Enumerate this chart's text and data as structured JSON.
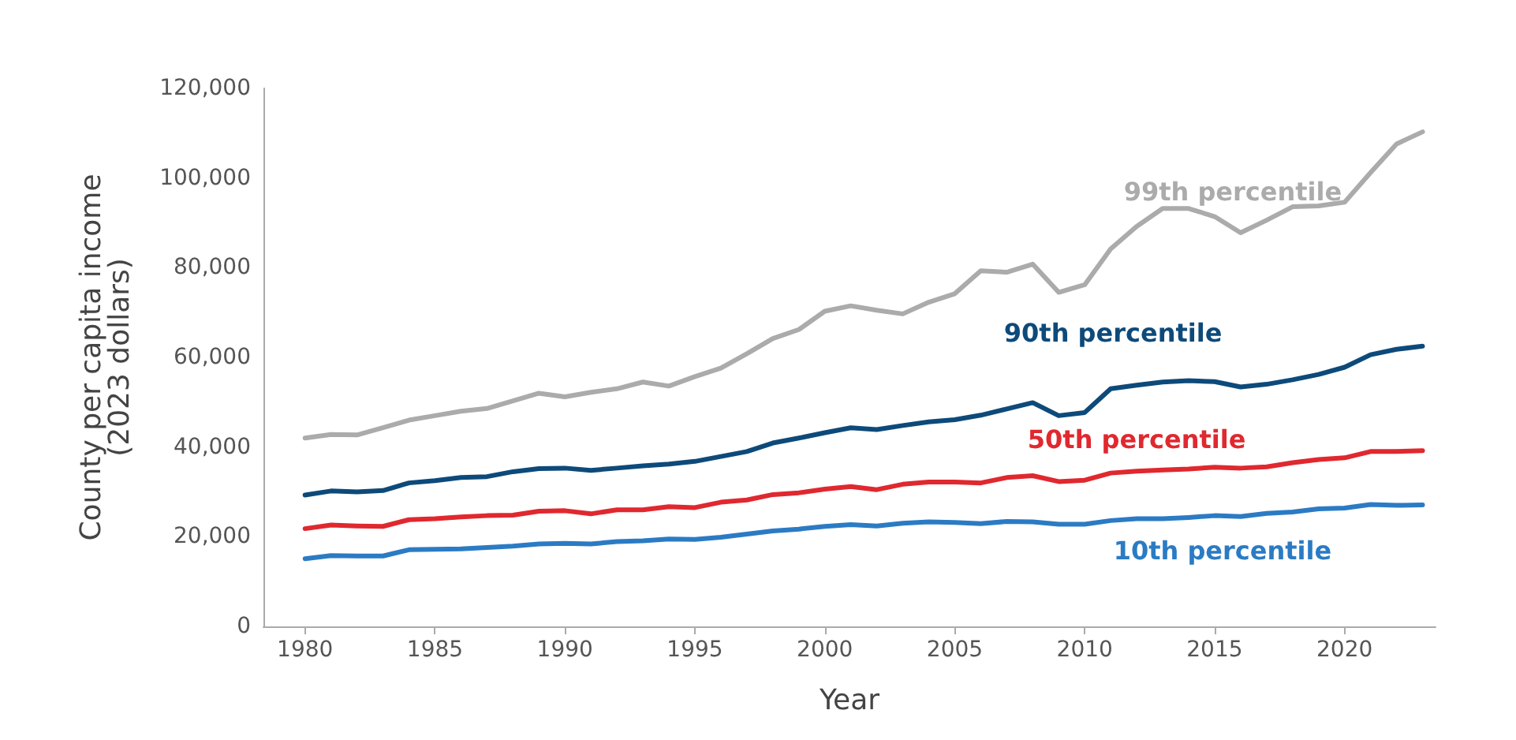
{
  "chart_data": {
    "type": "line",
    "xlabel": "Year",
    "ylabel": "County per capita income\n(2023 dollars)",
    "x": [
      1980,
      1981,
      1982,
      1983,
      1984,
      1985,
      1986,
      1987,
      1988,
      1989,
      1990,
      1991,
      1992,
      1993,
      1994,
      1995,
      1996,
      1997,
      1998,
      1999,
      2000,
      2001,
      2002,
      2003,
      2004,
      2005,
      2006,
      2007,
      2008,
      2009,
      2010,
      2011,
      2012,
      2013,
      2014,
      2015,
      2016,
      2017,
      2018,
      2019,
      2020,
      2021,
      2022,
      2023
    ],
    "xlim": [
      1978.4,
      2023.5
    ],
    "xticks": [
      1980,
      1985,
      1990,
      1995,
      2000,
      2005,
      2010,
      2015,
      2020
    ],
    "ylim": [
      0,
      120000
    ],
    "yticks": [
      {
        "value": 0,
        "label": "0"
      },
      {
        "value": 20000,
        "label": "20,000"
      },
      {
        "value": 40000,
        "label": "40,000"
      },
      {
        "value": 60000,
        "label": "60,000"
      },
      {
        "value": 80000,
        "label": "80,000"
      },
      {
        "value": 100000,
        "label": "100,000"
      },
      {
        "value": 120000,
        "label": "120,000"
      }
    ],
    "grid": false,
    "legend": false,
    "marker": "none",
    "line_style": "solid",
    "series": [
      {
        "name": "99th percentile",
        "color": "#ababab",
        "values": [
          42000,
          42800,
          42700,
          44300,
          46000,
          47000,
          48000,
          48600,
          50300,
          52000,
          51200,
          52200,
          53000,
          54500,
          53600,
          55700,
          57600,
          60800,
          64200,
          66200,
          70300,
          71500,
          70500,
          69700,
          72300,
          74200,
          79300,
          79000,
          80800,
          74500,
          76200,
          84200,
          89200,
          93200,
          93200,
          91400,
          87800,
          90600,
          93600,
          93800,
          94600,
          101200,
          107600,
          110300
        ]
      },
      {
        "name": "90th percentile",
        "color": "#0d4a7a",
        "values": [
          29300,
          30200,
          30000,
          30300,
          32000,
          32500,
          33200,
          33400,
          34500,
          35200,
          35300,
          34800,
          35300,
          35800,
          36200,
          36800,
          37900,
          39000,
          40900,
          42000,
          43200,
          44300,
          43900,
          44800,
          45600,
          46100,
          47100,
          48500,
          49900,
          47000,
          47700,
          53000,
          53800,
          54500,
          54800,
          54600,
          53400,
          54000,
          55000,
          56200,
          57800,
          60600,
          61800,
          62500
        ]
      },
      {
        "name": "50th percentile",
        "color": "#e0282f",
        "values": [
          21800,
          22600,
          22400,
          22300,
          23800,
          24000,
          24400,
          24700,
          24800,
          25700,
          25800,
          25100,
          26000,
          26000,
          26700,
          26500,
          27700,
          28200,
          29400,
          29800,
          30600,
          31200,
          30500,
          31700,
          32200,
          32200,
          32000,
          33200,
          33600,
          32300,
          32600,
          34200,
          34600,
          34900,
          35100,
          35500,
          35300,
          35600,
          36500,
          37200,
          37600,
          39000,
          39000,
          39200
        ]
      },
      {
        "name": "10th percentile",
        "color": "#2b7bc4",
        "values": [
          15100,
          15800,
          15700,
          15700,
          17100,
          17200,
          17300,
          17600,
          17900,
          18400,
          18500,
          18400,
          18900,
          19100,
          19500,
          19400,
          19900,
          20600,
          21300,
          21700,
          22300,
          22700,
          22400,
          23000,
          23300,
          23200,
          22900,
          23400,
          23300,
          22800,
          22800,
          23600,
          24000,
          24000,
          24300,
          24700,
          24500,
          25200,
          25500,
          26200,
          26400,
          27200,
          27000,
          27100
        ]
      }
    ]
  }
}
